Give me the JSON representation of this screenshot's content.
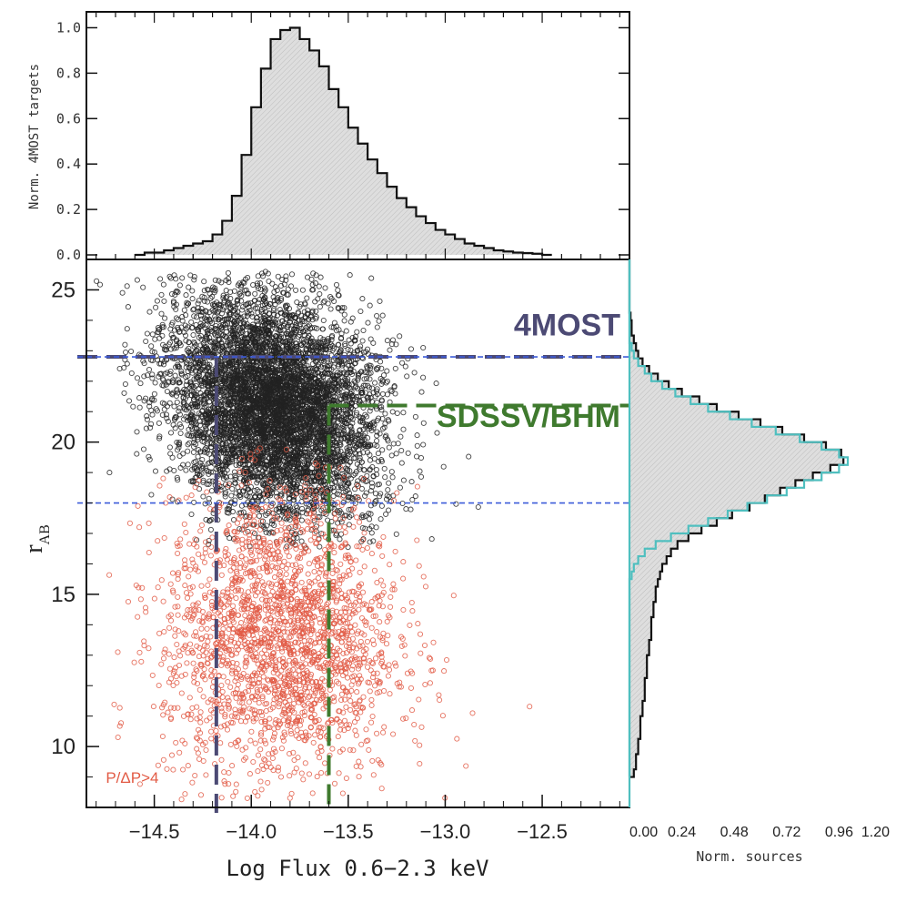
{
  "chart_data": [
    {
      "type": "bar",
      "panel": "top-histogram",
      "ylabel": "Norm. 4MOST targets",
      "xlim": [
        -14.85,
        -12.05
      ],
      "ylim": [
        -0.02,
        1.07
      ],
      "ytick_labels": [
        "0.0",
        "0.2",
        "0.4",
        "0.6",
        "0.8",
        "1.0"
      ],
      "ytick_values": [
        0.0,
        0.2,
        0.4,
        0.6,
        0.8,
        1.0
      ],
      "bin_width": 0.05,
      "bin_start": -14.6,
      "values": [
        0.0,
        0.01,
        0.01,
        0.02,
        0.03,
        0.04,
        0.05,
        0.06,
        0.09,
        0.15,
        0.26,
        0.44,
        0.65,
        0.82,
        0.95,
        0.99,
        1.0,
        0.95,
        0.9,
        0.83,
        0.73,
        0.65,
        0.56,
        0.49,
        0.42,
        0.36,
        0.3,
        0.25,
        0.21,
        0.17,
        0.14,
        0.11,
        0.09,
        0.07,
        0.05,
        0.04,
        0.03,
        0.02,
        0.015,
        0.01,
        0.008,
        0.005,
        0.0
      ],
      "fill_color": "#d9d9d9",
      "line_color": "#111111"
    },
    {
      "type": "scatter",
      "panel": "main-scatter",
      "xlabel": "Log Flux 0.6−2.3 keV",
      "ylabel": "r",
      "ylabel_sub": "AB",
      "xlim": [
        -14.85,
        -12.05
      ],
      "ylim": [
        8.0,
        26.0
      ],
      "xtick_labels": [
        "−14.5",
        "−14.0",
        "−13.5",
        "−13.0",
        "−12.5"
      ],
      "xtick_values": [
        -14.5,
        -14.0,
        -13.5,
        -13.0,
        -12.5
      ],
      "ytick_labels": [
        "10",
        "15",
        "20",
        "25"
      ],
      "ytick_values": [
        10,
        15,
        20,
        25
      ],
      "series": [
        {
          "color": "#222222",
          "distribution": {
            "x_mean": -13.95,
            "x_sd": 0.25,
            "y_mean": 21.3,
            "y_sd": 1.8,
            "x_range": [
              -14.8,
              -12.3
            ],
            "y_range": [
              16.5,
              25.6
            ],
            "n": 6000
          }
        },
        {
          "color": "#e25b45",
          "distribution": {
            "x_mean": -13.85,
            "x_sd": 0.3,
            "y_mean": 13.5,
            "y_sd": 2.4,
            "x_range": [
              -14.75,
              -12.35
            ],
            "y_range": [
              8.2,
              20.0
            ],
            "n": 2200
          }
        }
      ],
      "annotations": [
        {
          "text": "4MOST",
          "color": "#4c4a74",
          "x": -13.0,
          "y": 23.5
        },
        {
          "text": "SDSSV/BHM",
          "color": "#3f7a2e",
          "x": -13.0,
          "y": 20.5
        },
        {
          "text": "P/ΔP>4",
          "color": "#e25b45",
          "x": -14.75,
          "y": 8.8
        }
      ],
      "lines": [
        {
          "name": "4MOST r limit",
          "orientation": "horizontal",
          "value": 22.8,
          "color": "#4c4a74",
          "style": "long-dash"
        },
        {
          "name": "4MOST flux limit",
          "orientation": "vertical",
          "value": -14.18,
          "color": "#4c4a74",
          "style": "long-dash"
        },
        {
          "name": "SDSSV r limit",
          "orientation": "horizontal",
          "value": 21.2,
          "color": "#3f7a2e",
          "style": "long-dash",
          "x_from": -13.6
        },
        {
          "name": "SDSSV flux limit",
          "orientation": "vertical",
          "value": -13.6,
          "color": "#3f7a2e",
          "style": "long-dash"
        },
        {
          "name": "blue bright limit",
          "orientation": "horizontal",
          "value": 18.0,
          "color": "#3b5bd9",
          "style": "short-dash"
        },
        {
          "name": "blue faint limit",
          "orientation": "horizontal",
          "value": 22.8,
          "color": "#3b5bd9",
          "style": "short-dash"
        }
      ]
    },
    {
      "type": "bar",
      "panel": "right-histogram",
      "orientation": "horizontal",
      "xlabel": "Norm. sources",
      "xlim": [
        0.0,
        1.2
      ],
      "ylim": [
        8.0,
        26.0
      ],
      "xtick_labels": [
        "0.00",
        "0.24",
        "0.48",
        "0.72",
        "0.96",
        "1.20"
      ],
      "xtick_values": [
        0.0,
        0.24,
        0.48,
        0.72,
        0.96,
        1.2
      ],
      "bin_width": 0.25,
      "bin_start": 9.0,
      "series": [
        {
          "color": "#111111",
          "values": [
            0.02,
            0.03,
            0.03,
            0.04,
            0.04,
            0.05,
            0.05,
            0.05,
            0.06,
            0.06,
            0.07,
            0.07,
            0.07,
            0.08,
            0.08,
            0.08,
            0.09,
            0.09,
            0.1,
            0.1,
            0.1,
            0.11,
            0.11,
            0.12,
            0.12,
            0.13,
            0.14,
            0.15,
            0.17,
            0.19,
            0.22,
            0.27,
            0.33,
            0.4,
            0.47,
            0.55,
            0.62,
            0.69,
            0.76,
            0.84,
            0.92,
            0.98,
            0.97,
            0.9,
            0.8,
            0.7,
            0.6,
            0.5,
            0.4,
            0.32,
            0.24,
            0.18,
            0.13,
            0.09,
            0.06,
            0.04,
            0.03,
            0.02,
            0.01,
            0.01,
            0.005,
            0.0,
            0.0,
            0.0,
            0.0,
            0.0,
            0.0,
            0.0
          ]
        },
        {
          "color": "#4fbfbf",
          "values": [
            0.0,
            0.0,
            0.0,
            0.0,
            0.0,
            0.0,
            0.0,
            0.0,
            0.0,
            0.0,
            0.0,
            0.0,
            0.0,
            0.0,
            0.0,
            0.0,
            0.0,
            0.0,
            0.0,
            0.0,
            0.0,
            0.0,
            0.0,
            0.0,
            0.0,
            0.0,
            0.01,
            0.02,
            0.04,
            0.07,
            0.12,
            0.19,
            0.27,
            0.36,
            0.45,
            0.54,
            0.63,
            0.72,
            0.8,
            0.88,
            0.96,
            1.0,
            0.96,
            0.88,
            0.78,
            0.67,
            0.56,
            0.46,
            0.36,
            0.28,
            0.21,
            0.15,
            0.1,
            0.07,
            0.04,
            0.02,
            0.01,
            0.0,
            0.0,
            0.0,
            0.0,
            0.0,
            0.0,
            0.0,
            0.0,
            0.0,
            0.0,
            0.0
          ]
        }
      ]
    }
  ]
}
